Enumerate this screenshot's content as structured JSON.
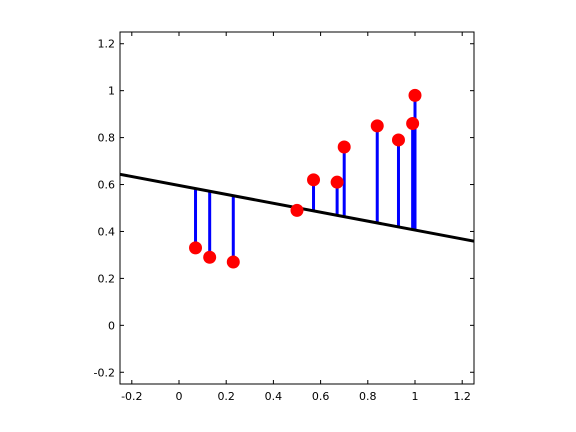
{
  "chart_data": {
    "type": "scatter",
    "title": "",
    "xlabel": "",
    "ylabel": "",
    "xlim": [
      -0.25,
      1.25
    ],
    "ylim": [
      -0.25,
      1.25
    ],
    "grid": false,
    "xticks": [
      -0.2,
      0,
      0.2,
      0.4,
      0.6,
      0.8,
      1,
      1.2
    ],
    "xtick_labels": [
      "-0.2",
      "0",
      "0.2",
      "0.4",
      "0.6",
      "0.8",
      "1",
      "1.2"
    ],
    "yticks": [
      -0.2,
      0,
      0.2,
      0.4,
      0.6,
      0.8,
      1,
      1.2
    ],
    "ytick_labels": [
      "-0.2",
      "0",
      "0.2",
      "0.4",
      "0.6",
      "0.8",
      "1",
      "1.2"
    ],
    "points": [
      {
        "x": 0.07,
        "y": 0.33
      },
      {
        "x": 0.13,
        "y": 0.29
      },
      {
        "x": 0.23,
        "y": 0.27
      },
      {
        "x": 0.5,
        "y": 0.49
      },
      {
        "x": 0.57,
        "y": 0.62
      },
      {
        "x": 0.67,
        "y": 0.61
      },
      {
        "x": 0.7,
        "y": 0.76
      },
      {
        "x": 0.84,
        "y": 0.85
      },
      {
        "x": 0.93,
        "y": 0.79
      },
      {
        "x": 0.99,
        "y": 0.86
      },
      {
        "x": 1.0,
        "y": 0.98
      }
    ],
    "fit_line": {
      "intercept": 0.596,
      "slope": -0.19
    },
    "colors": {
      "points": "#ff0000",
      "residuals": "#0000ff",
      "fit_line": "#000000",
      "axes": "#000000"
    }
  }
}
